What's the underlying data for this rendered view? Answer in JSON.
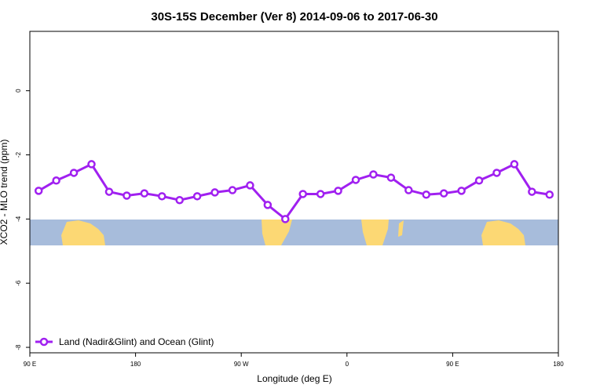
{
  "chart_data": {
    "type": "line",
    "title": "30S-15S December (Ver 8)   2014-09-06 to 2017-06-30",
    "x_label": "Longitude (deg E)",
    "y_label": "XCO2 - MLO trend (ppm)",
    "x": [
      97.5,
      112.5,
      127.5,
      142.5,
      157.5,
      172.5,
      187.5,
      202.5,
      217.5,
      232.5,
      247.5,
      262.5,
      277.5,
      292.5,
      307.5,
      322.5,
      337.5,
      352.5,
      367.5,
      382.5,
      397.5,
      412.5,
      427.5,
      442.5,
      457.5,
      472.5,
      487.5,
      502.5,
      517.5,
      532.5
    ],
    "series": [
      {
        "name": "Land (Nadir&Glint) and Ocean (Glint)",
        "color": "#a020f0",
        "values": [
          -3.12,
          -2.8,
          -2.56,
          -2.29,
          -3.15,
          -3.27,
          -3.2,
          -3.29,
          -3.41,
          -3.29,
          -3.17,
          -3.1,
          -2.95,
          -3.56,
          -4.0,
          -3.22,
          -3.22,
          -3.12,
          -2.78,
          -2.61,
          -2.71,
          -3.1,
          -3.24,
          -3.2,
          -3.12,
          -2.8,
          -2.56,
          -2.29,
          -3.15,
          -3.24
        ]
      }
    ],
    "xlim": [
      90,
      540
    ],
    "xticks": [
      {
        "value": 90,
        "label": "90 E"
      },
      180,
      {
        "value": 270,
        "label": "90 W"
      },
      {
        "value": 360,
        "label": "0"
      },
      {
        "value": 450,
        "label": "90 E"
      },
      {
        "value": 540,
        "label": "180"
      }
    ],
    "ylim": [
      1.85,
      -8.17
    ],
    "yticks": [
      0,
      -2,
      -4,
      -6,
      -8
    ],
    "legend_position": "bottom-left"
  }
}
